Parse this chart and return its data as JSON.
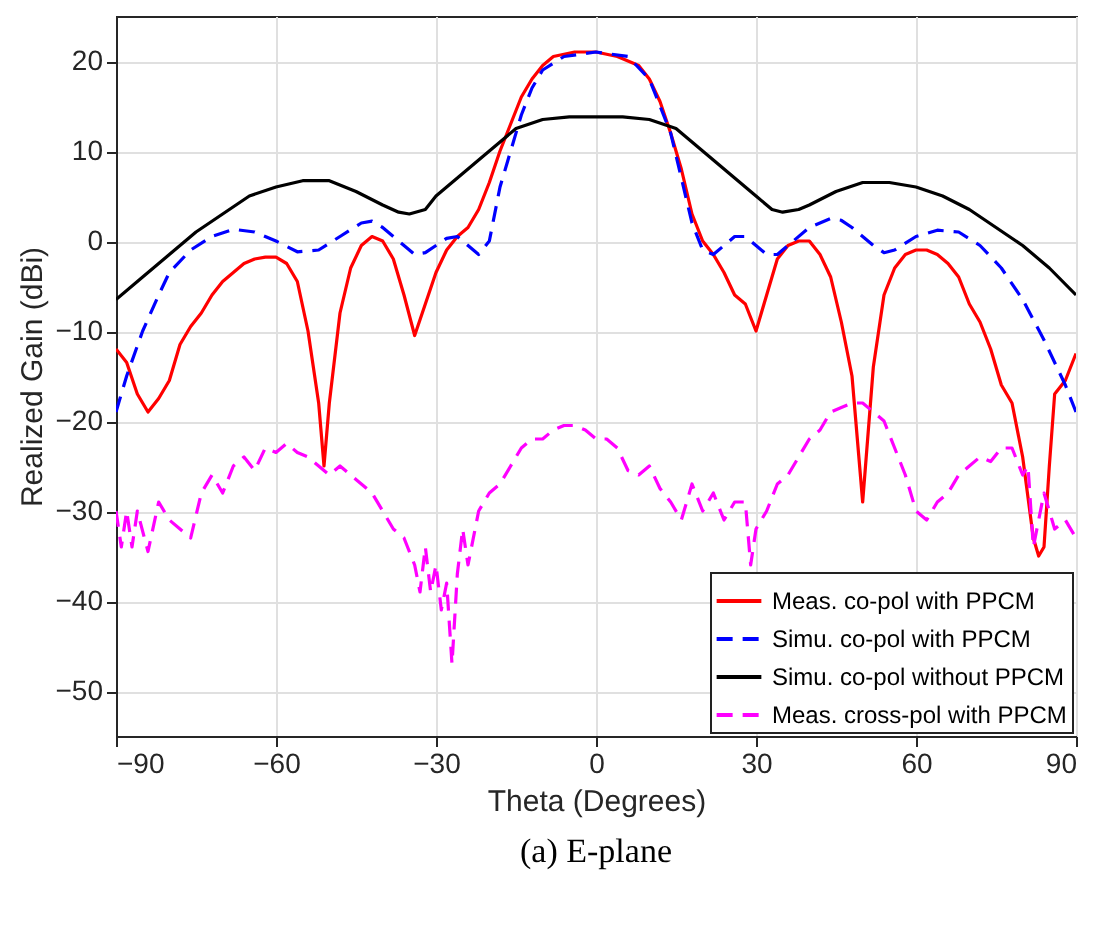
{
  "chart_data": {
    "type": "line",
    "xlabel": "Theta (Degrees)",
    "ylabel": "Realized Gain (dBi)",
    "annotations": [
      "(a) E-plane"
    ],
    "xlim": [
      -90,
      90
    ],
    "ylim": [
      -55,
      25
    ],
    "xticks": [
      -90,
      -60,
      -30,
      0,
      30,
      60,
      90
    ],
    "yticks": [
      -50,
      -40,
      -30,
      -20,
      -10,
      0,
      10,
      20
    ],
    "grid": true,
    "legend": "bottom right",
    "series": [
      {
        "name": "Meas. co-pol with PPCM",
        "color": "#ff0000",
        "line_style": "solid",
        "x": [
          -90,
          -88,
          -86,
          -84,
          -82,
          -80,
          -78,
          -76,
          -74,
          -72,
          -70,
          -68,
          -66,
          -64,
          -62,
          -60,
          -58,
          -56,
          -54,
          -52,
          -51,
          -50,
          -48,
          -46,
          -44,
          -42,
          -40,
          -38,
          -36,
          -34,
          -32,
          -30,
          -28,
          -26,
          -24,
          -22,
          -20,
          -18,
          -16,
          -14,
          -12,
          -10,
          -8,
          -4,
          0,
          4,
          8,
          10,
          12,
          14,
          16,
          18,
          20,
          22,
          24,
          26,
          28,
          30,
          32,
          34,
          36,
          38,
          40,
          42,
          44,
          46,
          48,
          50,
          52,
          54,
          56,
          58,
          60,
          62,
          64,
          66,
          68,
          70,
          72,
          74,
          76,
          78,
          80,
          82,
          83,
          84,
          85,
          86,
          88,
          90
        ],
        "values": [
          -12,
          -13.5,
          -17,
          -19,
          -17.5,
          -15.5,
          -11.5,
          -9.5,
          -8,
          -6,
          -4.5,
          -3.5,
          -2.5,
          -2,
          -1.8,
          -1.8,
          -2.5,
          -4.5,
          -10,
          -18,
          -25,
          -18,
          -8,
          -3,
          -0.5,
          0.5,
          0,
          -2,
          -6,
          -10.5,
          -7,
          -3.5,
          -1,
          0.5,
          1.5,
          3.5,
          6.5,
          10,
          13,
          16,
          18,
          19.5,
          20.5,
          21,
          21,
          20.5,
          19.5,
          18,
          15.5,
          12,
          8,
          3,
          0,
          -1.5,
          -3.5,
          -6,
          -7,
          -10,
          -6,
          -2,
          -0.5,
          0,
          0,
          -1.5,
          -4,
          -9,
          -15,
          -29,
          -14,
          -6,
          -3,
          -1.5,
          -1,
          -1,
          -1.5,
          -2.5,
          -4,
          -7,
          -9,
          -12,
          -16,
          -18,
          -24,
          -33,
          -35,
          -34,
          -25,
          -17,
          -15.5,
          -12.5
        ]
      },
      {
        "name": "Simu. co-pol with PPCM",
        "color": "#0000ff",
        "line_style": "dashed",
        "x": [
          -90,
          -88,
          -85,
          -82,
          -80,
          -76,
          -72,
          -68,
          -64,
          -60,
          -56,
          -52,
          -48,
          -44,
          -42,
          -40,
          -36,
          -34,
          -32,
          -30,
          -28,
          -26,
          -24,
          -22,
          -20,
          -18,
          -16,
          -14,
          -12,
          -10,
          -6,
          0,
          6,
          10,
          14,
          16,
          18,
          20,
          22,
          24,
          26,
          28,
          30,
          32,
          34,
          36,
          40,
          44,
          46,
          48,
          52,
          54,
          56,
          60,
          64,
          68,
          72,
          76,
          80,
          84,
          88,
          90
        ],
        "values": [
          -19,
          -15,
          -10,
          -6,
          -3.5,
          -1,
          0.5,
          1.3,
          1,
          0,
          -1.2,
          -1,
          0.5,
          2,
          2.2,
          1.5,
          -0.5,
          -1.5,
          -1.3,
          -0.5,
          0.3,
          0.5,
          -0.5,
          -1.5,
          0,
          6,
          10,
          14,
          17,
          19,
          20.5,
          21,
          20.5,
          18,
          12,
          7,
          2,
          -1,
          -1.5,
          -0.5,
          0.5,
          0.5,
          -0.5,
          -1.5,
          -1.5,
          -0.5,
          1.5,
          2.5,
          2.3,
          1.5,
          -0.5,
          -1.3,
          -1,
          0.5,
          1.2,
          1,
          -0.5,
          -3,
          -6.5,
          -11,
          -16,
          -19
        ]
      },
      {
        "name": "Simu. co-pol without PPCM",
        "color": "#000000",
        "line_style": "solid",
        "x": [
          -90,
          -85,
          -80,
          -75,
          -70,
          -65,
          -60,
          -55,
          -50,
          -45,
          -40,
          -37,
          -35,
          -32,
          -30,
          -25,
          -20,
          -15,
          -10,
          -5,
          0,
          5,
          10,
          15,
          20,
          25,
          30,
          33,
          35,
          38,
          40,
          45,
          50,
          55,
          60,
          65,
          70,
          75,
          80,
          85,
          90
        ],
        "values": [
          -6.5,
          -4,
          -1.5,
          1,
          3,
          5,
          6,
          6.7,
          6.7,
          5.5,
          4,
          3.2,
          3,
          3.5,
          5,
          7.5,
          10,
          12.5,
          13.5,
          13.8,
          13.8,
          13.8,
          13.5,
          12.5,
          10,
          7.5,
          5,
          3.5,
          3.2,
          3.5,
          4,
          5.5,
          6.5,
          6.5,
          6,
          5,
          3.5,
          1.5,
          -0.5,
          -3,
          -6
        ]
      },
      {
        "name": "Meas. cross-pol with PPCM",
        "color": "#ff00ff",
        "line_style": "dashed",
        "x": [
          -90,
          -89,
          -88,
          -87,
          -86,
          -84,
          -82,
          -80,
          -78,
          -76,
          -74,
          -72,
          -70,
          -68,
          -66,
          -64,
          -62,
          -60,
          -58,
          -56,
          -54,
          -52,
          -50,
          -48,
          -46,
          -44,
          -42,
          -40,
          -38,
          -36,
          -34,
          -33,
          -32,
          -31,
          -30,
          -29,
          -28,
          -27,
          -26,
          -25,
          -24,
          -22,
          -20,
          -18,
          -16,
          -14,
          -12,
          -10,
          -8,
          -6,
          -4,
          -2,
          0,
          2,
          4,
          6,
          8,
          10,
          12,
          14,
          16,
          18,
          20,
          22,
          24,
          26,
          28,
          29,
          30,
          32,
          34,
          36,
          38,
          40,
          42,
          44,
          46,
          48,
          50,
          52,
          54,
          56,
          58,
          60,
          62,
          64,
          66,
          68,
          70,
          72,
          74,
          76,
          78,
          80,
          81,
          82,
          84,
          86,
          88,
          90
        ],
        "values": [
          -30,
          -34,
          -30,
          -34,
          -30,
          -34.5,
          -29,
          -31,
          -32,
          -33,
          -28,
          -26,
          -28,
          -25,
          -24,
          -25.5,
          -23,
          -23.5,
          -22.5,
          -23.5,
          -24,
          -25,
          -26,
          -25,
          -26,
          -27,
          -28,
          -30,
          -32,
          -33,
          -36,
          -39,
          -34,
          -39,
          -36,
          -41,
          -38,
          -47,
          -37,
          -32,
          -36,
          -30,
          -28,
          -27,
          -25,
          -23,
          -22,
          -22,
          -21,
          -20.5,
          -20.5,
          -21,
          -22,
          -22,
          -23,
          -25.5,
          -26,
          -25,
          -27.5,
          -29,
          -31,
          -27,
          -30,
          -28,
          -31,
          -29,
          -29,
          -36,
          -32,
          -30,
          -27,
          -26,
          -24,
          -22,
          -21,
          -19,
          -18.5,
          -18,
          -18,
          -19,
          -20,
          -23,
          -26,
          -30,
          -31,
          -29,
          -28,
          -26,
          -25,
          -24,
          -24.5,
          -23,
          -23,
          -26,
          -25,
          -34,
          -28,
          -32,
          -31,
          -33
        ]
      }
    ]
  }
}
